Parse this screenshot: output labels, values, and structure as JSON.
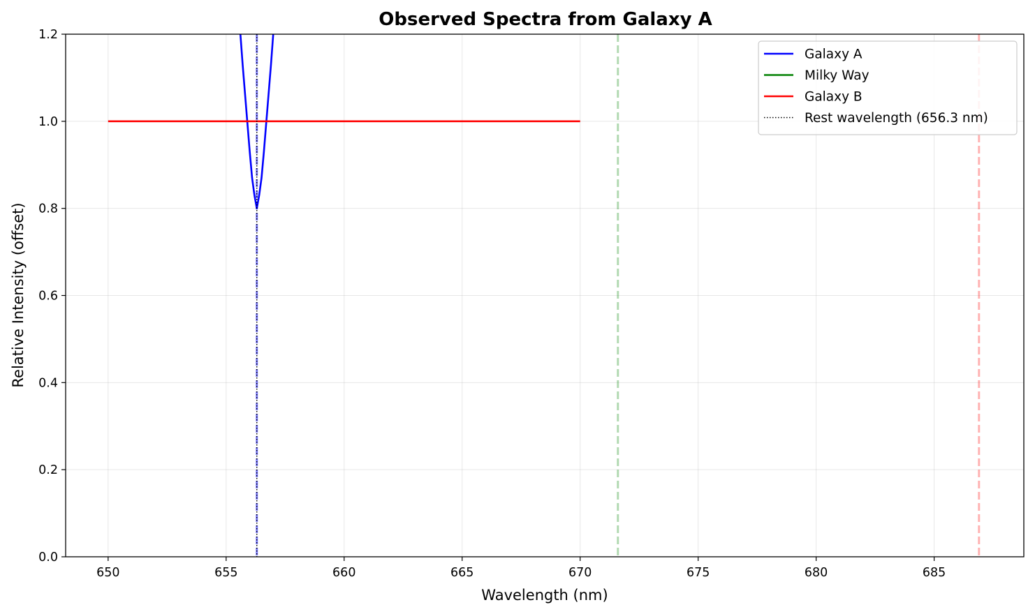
{
  "chart_data": {
    "type": "line",
    "title": "Observed Spectra from Galaxy A",
    "xlabel": "Wavelength (nm)",
    "ylabel": "Relative Intensity (offset)",
    "xlim": [
      648.2,
      688.8
    ],
    "ylim": [
      0.0,
      1.2
    ],
    "grid": true,
    "legend_position": "top-right",
    "x_ticks": [
      "650",
      "655",
      "660",
      "665",
      "670",
      "675",
      "680",
      "685"
    ],
    "x_tick_values": [
      650,
      655,
      660,
      665,
      670,
      675,
      680,
      685
    ],
    "y_ticks": [
      "0.0",
      "0.2",
      "0.4",
      "0.6",
      "0.8",
      "1.0",
      "1.2"
    ],
    "y_tick_values": [
      0.0,
      0.2,
      0.4,
      0.6,
      0.8,
      1.0,
      1.2
    ],
    "series": [
      {
        "name": "Galaxy A",
        "color": "#0000ff",
        "style": "solid",
        "x": [
          655.55,
          655.7,
          655.85,
          656.0,
          656.1,
          656.2,
          656.3,
          656.4,
          656.5,
          656.6,
          656.75,
          656.9,
          657.05
        ],
        "y": [
          1.24,
          1.13,
          1.03,
          0.93,
          0.87,
          0.83,
          0.8,
          0.83,
          0.87,
          0.93,
          1.03,
          1.13,
          1.24
        ]
      },
      {
        "name": "Milky Way",
        "color": "#008000",
        "style": "solid",
        "x": [],
        "y": []
      },
      {
        "name": "Galaxy B",
        "color": "#ff0000",
        "style": "solid",
        "x": [
          650,
          670
        ],
        "y": [
          1.0,
          1.0
        ]
      },
      {
        "name": "Rest wavelength (656.3 nm)",
        "color": "#000000",
        "style": "dotted",
        "vline": 656.3
      }
    ],
    "marker_lines": [
      {
        "x": 656.3,
        "color": "#0000ff",
        "style": "dashed",
        "alpha": 0.5
      },
      {
        "x": 671.6,
        "color": "#008000",
        "style": "dashed",
        "alpha": 0.3
      },
      {
        "x": 686.9,
        "color": "#ff0000",
        "style": "dashed",
        "alpha": 0.3
      }
    ]
  }
}
